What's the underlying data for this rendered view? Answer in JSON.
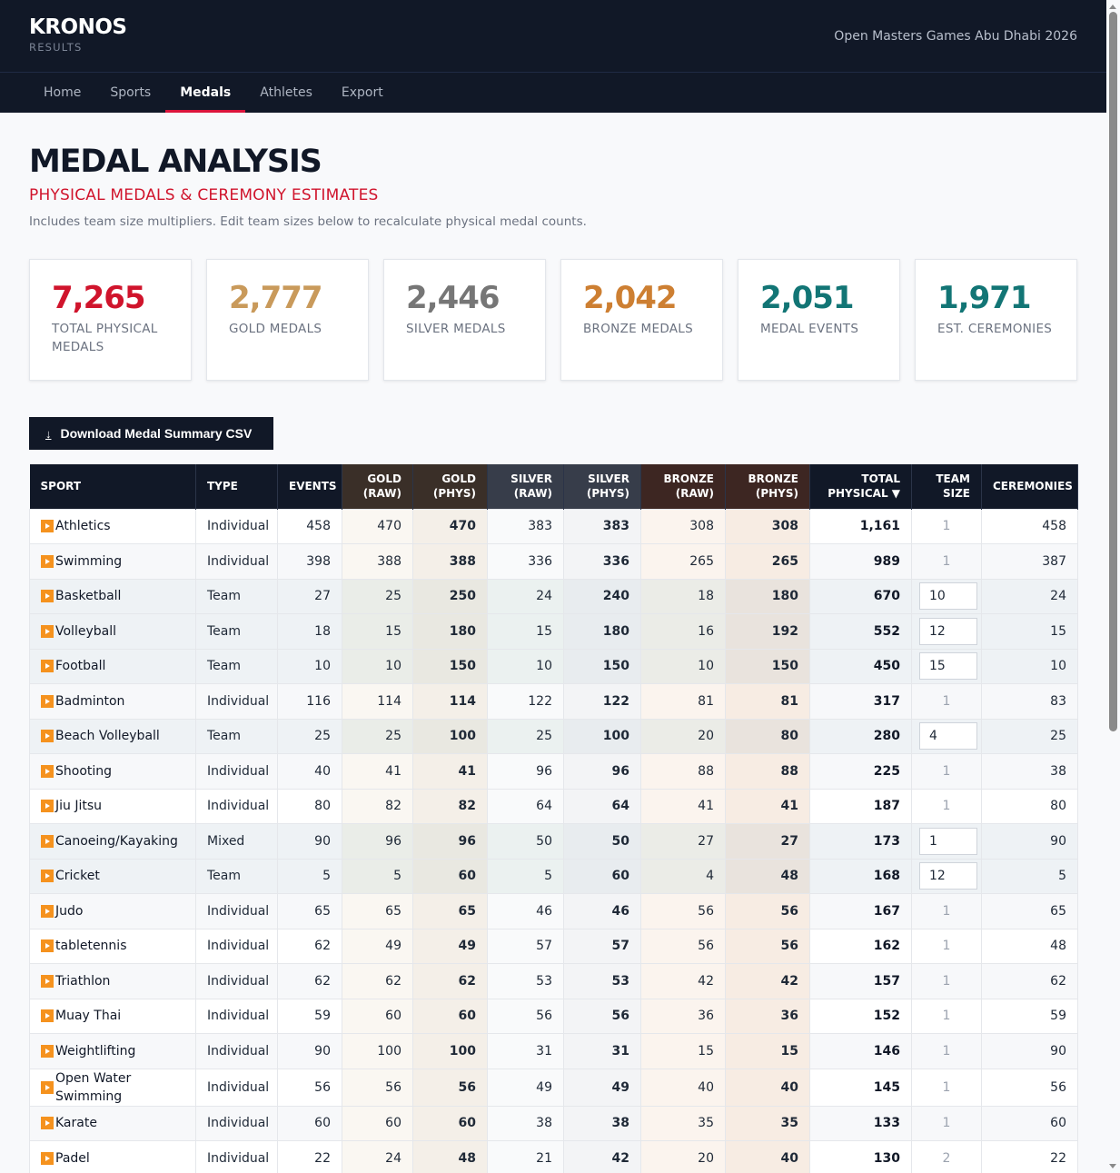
{
  "header": {
    "brand_title": "KRONOS",
    "brand_subtitle": "RESULTS",
    "event_name": "Open Masters Games Abu Dhabi 2026"
  },
  "nav": {
    "items": [
      {
        "label": "Home",
        "active": false
      },
      {
        "label": "Sports",
        "active": false
      },
      {
        "label": "Medals",
        "active": true
      },
      {
        "label": "Athletes",
        "active": false
      },
      {
        "label": "Export",
        "active": false
      }
    ]
  },
  "page": {
    "title": "MEDAL ANALYSIS",
    "subtitle": "PHYSICAL MEDALS & CEREMONY ESTIMATES",
    "description": "Includes team size multipliers. Edit team sizes below to recalculate physical medal counts."
  },
  "cards": [
    {
      "value": "7,265",
      "label": "TOTAL PHYSICAL MEDALS",
      "color": "#d0142c"
    },
    {
      "value": "2,777",
      "label": "GOLD MEDALS",
      "color": "#c99a5b"
    },
    {
      "value": "2,446",
      "label": "SILVER MEDALS",
      "color": "#767676"
    },
    {
      "value": "2,042",
      "label": "BRONZE MEDALS",
      "color": "#cd7f32"
    },
    {
      "value": "2,051",
      "label": "MEDAL EVENTS",
      "color": "#127575"
    },
    {
      "value": "1,971",
      "label": "EST. CEREMONIES",
      "color": "#127575"
    }
  ],
  "download_button": {
    "icon": "download-icon",
    "label": "Download Medal Summary CSV"
  },
  "table": {
    "headers": {
      "sport": "SPORT",
      "type": "TYPE",
      "events": "EVENTS",
      "gold_raw": [
        "GOLD",
        "(RAW)"
      ],
      "gold_phys": [
        "GOLD",
        "(PHYS)"
      ],
      "silver_raw": [
        "SILVER",
        "(RAW)"
      ],
      "silver_phys": [
        "SILVER",
        "(PHYS)"
      ],
      "bronze_raw": [
        "BRONZE",
        "(RAW)"
      ],
      "bronze_phys": [
        "BRONZE",
        "(PHYS)"
      ],
      "total_physical": [
        "TOTAL",
        "PHYSICAL ▼"
      ],
      "team_size": [
        "TEAM",
        "SIZE"
      ],
      "ceremonies": "CEREMONIES"
    },
    "rows": [
      {
        "sport": "Athletics",
        "type": "Individual",
        "events": "458",
        "gold_raw": "470",
        "gold_phys": "470",
        "silver_raw": "383",
        "silver_phys": "383",
        "bronze_raw": "308",
        "bronze_phys": "308",
        "total": "1,161",
        "team_size": "1",
        "editable": false,
        "ceremonies": "458"
      },
      {
        "sport": "Swimming",
        "type": "Individual",
        "events": "398",
        "gold_raw": "388",
        "gold_phys": "388",
        "silver_raw": "336",
        "silver_phys": "336",
        "bronze_raw": "265",
        "bronze_phys": "265",
        "total": "989",
        "team_size": "1",
        "editable": false,
        "ceremonies": "387"
      },
      {
        "sport": "Basketball",
        "type": "Team",
        "events": "27",
        "gold_raw": "25",
        "gold_phys": "250",
        "silver_raw": "24",
        "silver_phys": "240",
        "bronze_raw": "18",
        "bronze_phys": "180",
        "total": "670",
        "team_size": "10",
        "editable": true,
        "ceremonies": "24"
      },
      {
        "sport": "Volleyball",
        "type": "Team",
        "events": "18",
        "gold_raw": "15",
        "gold_phys": "180",
        "silver_raw": "15",
        "silver_phys": "180",
        "bronze_raw": "16",
        "bronze_phys": "192",
        "total": "552",
        "team_size": "12",
        "editable": true,
        "ceremonies": "15"
      },
      {
        "sport": "Football",
        "type": "Team",
        "events": "10",
        "gold_raw": "10",
        "gold_phys": "150",
        "silver_raw": "10",
        "silver_phys": "150",
        "bronze_raw": "10",
        "bronze_phys": "150",
        "total": "450",
        "team_size": "15",
        "editable": true,
        "ceremonies": "10"
      },
      {
        "sport": "Badminton",
        "type": "Individual",
        "events": "116",
        "gold_raw": "114",
        "gold_phys": "114",
        "silver_raw": "122",
        "silver_phys": "122",
        "bronze_raw": "81",
        "bronze_phys": "81",
        "total": "317",
        "team_size": "1",
        "editable": false,
        "ceremonies": "83"
      },
      {
        "sport": "Beach Volleyball",
        "type": "Team",
        "events": "25",
        "gold_raw": "25",
        "gold_phys": "100",
        "silver_raw": "25",
        "silver_phys": "100",
        "bronze_raw": "20",
        "bronze_phys": "80",
        "total": "280",
        "team_size": "4",
        "editable": true,
        "ceremonies": "25"
      },
      {
        "sport": "Shooting",
        "type": "Individual",
        "events": "40",
        "gold_raw": "41",
        "gold_phys": "41",
        "silver_raw": "96",
        "silver_phys": "96",
        "bronze_raw": "88",
        "bronze_phys": "88",
        "total": "225",
        "team_size": "1",
        "editable": false,
        "ceremonies": "38"
      },
      {
        "sport": "Jiu Jitsu",
        "type": "Individual",
        "events": "80",
        "gold_raw": "82",
        "gold_phys": "82",
        "silver_raw": "64",
        "silver_phys": "64",
        "bronze_raw": "41",
        "bronze_phys": "41",
        "total": "187",
        "team_size": "1",
        "editable": false,
        "ceremonies": "80"
      },
      {
        "sport": "Canoeing/Kayaking",
        "type": "Mixed",
        "events": "90",
        "gold_raw": "96",
        "gold_phys": "96",
        "silver_raw": "50",
        "silver_phys": "50",
        "bronze_raw": "27",
        "bronze_phys": "27",
        "total": "173",
        "team_size": "1",
        "editable": true,
        "ceremonies": "90"
      },
      {
        "sport": "Cricket",
        "type": "Team",
        "events": "5",
        "gold_raw": "5",
        "gold_phys": "60",
        "silver_raw": "5",
        "silver_phys": "60",
        "bronze_raw": "4",
        "bronze_phys": "48",
        "total": "168",
        "team_size": "12",
        "editable": true,
        "ceremonies": "5"
      },
      {
        "sport": "Judo",
        "type": "Individual",
        "events": "65",
        "gold_raw": "65",
        "gold_phys": "65",
        "silver_raw": "46",
        "silver_phys": "46",
        "bronze_raw": "56",
        "bronze_phys": "56",
        "total": "167",
        "team_size": "1",
        "editable": false,
        "ceremonies": "65"
      },
      {
        "sport": "tabletennis",
        "type": "Individual",
        "events": "62",
        "gold_raw": "49",
        "gold_phys": "49",
        "silver_raw": "57",
        "silver_phys": "57",
        "bronze_raw": "56",
        "bronze_phys": "56",
        "total": "162",
        "team_size": "1",
        "editable": false,
        "ceremonies": "48"
      },
      {
        "sport": "Triathlon",
        "type": "Individual",
        "events": "62",
        "gold_raw": "62",
        "gold_phys": "62",
        "silver_raw": "53",
        "silver_phys": "53",
        "bronze_raw": "42",
        "bronze_phys": "42",
        "total": "157",
        "team_size": "1",
        "editable": false,
        "ceremonies": "62"
      },
      {
        "sport": "Muay Thai",
        "type": "Individual",
        "events": "59",
        "gold_raw": "60",
        "gold_phys": "60",
        "silver_raw": "56",
        "silver_phys": "56",
        "bronze_raw": "36",
        "bronze_phys": "36",
        "total": "152",
        "team_size": "1",
        "editable": false,
        "ceremonies": "59"
      },
      {
        "sport": "Weightlifting",
        "type": "Individual",
        "events": "90",
        "gold_raw": "100",
        "gold_phys": "100",
        "silver_raw": "31",
        "silver_phys": "31",
        "bronze_raw": "15",
        "bronze_phys": "15",
        "total": "146",
        "team_size": "1",
        "editable": false,
        "ceremonies": "90"
      },
      {
        "sport": "Open Water Swimming",
        "type": "Individual",
        "events": "56",
        "gold_raw": "56",
        "gold_phys": "56",
        "silver_raw": "49",
        "silver_phys": "49",
        "bronze_raw": "40",
        "bronze_phys": "40",
        "total": "145",
        "team_size": "1",
        "editable": false,
        "ceremonies": "56"
      },
      {
        "sport": "Karate",
        "type": "Individual",
        "events": "60",
        "gold_raw": "60",
        "gold_phys": "60",
        "silver_raw": "38",
        "silver_phys": "38",
        "bronze_raw": "35",
        "bronze_phys": "35",
        "total": "133",
        "team_size": "1",
        "editable": false,
        "ceremonies": "60"
      },
      {
        "sport": "Padel",
        "type": "Individual",
        "events": "22",
        "gold_raw": "24",
        "gold_phys": "48",
        "silver_raw": "21",
        "silver_phys": "42",
        "bronze_raw": "20",
        "bronze_phys": "40",
        "total": "130",
        "team_size": "2",
        "editable": false,
        "ceremonies": "22"
      }
    ]
  }
}
